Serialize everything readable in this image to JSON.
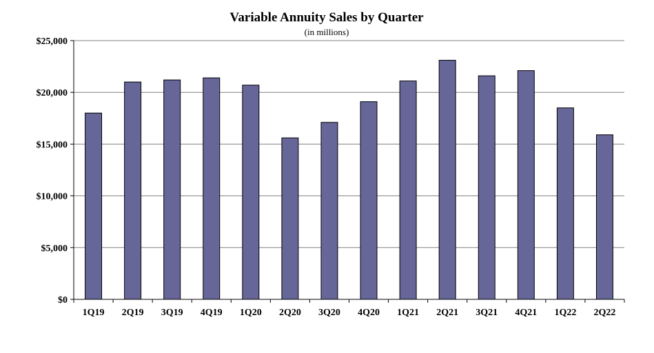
{
  "chart_data": {
    "type": "bar",
    "title": "Variable Annuity Sales by Quarter",
    "subtitle": "(in millions)",
    "xlabel": "",
    "ylabel": "",
    "categories": [
      "1Q19",
      "2Q19",
      "3Q19",
      "4Q19",
      "1Q20",
      "2Q20",
      "3Q20",
      "4Q20",
      "1Q21",
      "2Q21",
      "3Q21",
      "4Q21",
      "1Q22",
      "2Q22"
    ],
    "values": [
      18000,
      21000,
      21200,
      21400,
      20700,
      15600,
      17100,
      19100,
      21100,
      23100,
      21600,
      22100,
      18500,
      15900
    ],
    "ylim": [
      0,
      25000
    ],
    "y_ticks": [
      0,
      5000,
      10000,
      15000,
      20000,
      25000
    ],
    "y_tick_labels": [
      "$0",
      "$5,000",
      "$10,000",
      "$15,000",
      "$20,000",
      "$25,000"
    ],
    "grid": true,
    "legend": "none",
    "bar_color": "#666699",
    "bar_stroke": "#000000",
    "grid_color": "#808080"
  }
}
